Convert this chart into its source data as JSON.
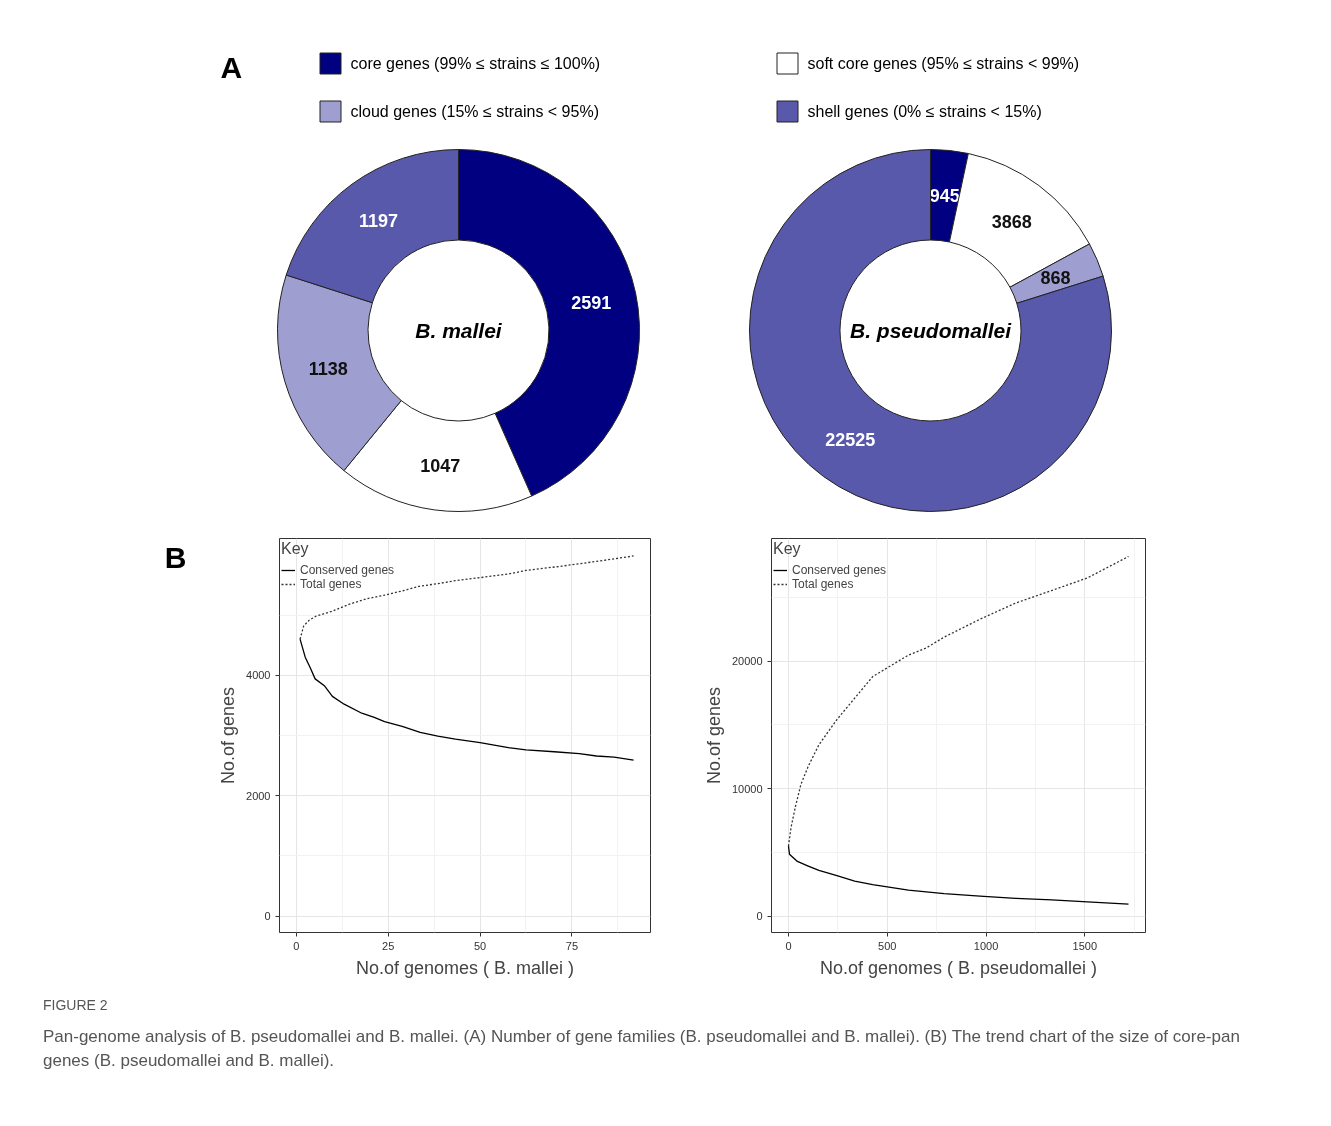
{
  "chart_data": [
    {
      "type": "donut",
      "annotations": [
        "A"
      ],
      "legend": "top",
      "data_labels": true,
      "categories": [
        "core genes (99% ≤ strains ≤ 100%)",
        "soft core genes (95% ≤ strains < 99%)",
        "cloud genes (15% ≤ strains < 95%)",
        "shell genes (0% ≤ strains < 15%)"
      ],
      "colors": [
        "#000080",
        "#ffffff",
        "#9e9fd0",
        "#5959ab"
      ],
      "series": [
        {
          "name": "B. mallei",
          "values": [
            2591,
            1047,
            1138,
            1197
          ]
        },
        {
          "name": "B. pseudomallei",
          "values": [
            945,
            3868,
            868,
            22525
          ]
        }
      ]
    },
    {
      "type": "line",
      "annotations": [
        "B"
      ],
      "xlabel": "No.of genomes ( B. mallei )",
      "ylabel": "No.of genes",
      "legend_title": "Key",
      "legend": "top left",
      "grid": true,
      "xlim": [
        -4.6,
        96.4
      ],
      "ylim": [
        -270,
        6270
      ],
      "xticks": [
        0,
        25,
        50,
        75
      ],
      "yticks": [
        0,
        2000,
        4000
      ],
      "series": [
        {
          "name": "Conserved genes",
          "color": "#000000",
          "line_style": "solid",
          "x": [
            1,
            2.4,
            3.8,
            5.1,
            7.7,
            9.8,
            13,
            17.8,
            21.2,
            24,
            28.8,
            33.7,
            38.5,
            43.3,
            50,
            57.7,
            62.5,
            70.2,
            77,
            81.7,
            86.5,
            91.8
          ],
          "values": [
            4600,
            4300,
            4120,
            3940,
            3820,
            3650,
            3520,
            3370,
            3300,
            3230,
            3150,
            3050,
            2990,
            2940,
            2880,
            2800,
            2760,
            2730,
            2700,
            2660,
            2640,
            2590
          ]
        },
        {
          "name": "Total genes",
          "color": "#333333",
          "line_style": "dotted",
          "x": [
            1,
            2,
            3.4,
            5.3,
            9.6,
            14.4,
            19.2,
            24,
            28.8,
            33.7,
            38.5,
            43.3,
            50,
            57.7,
            62.5,
            72.1,
            81.7,
            91.8
          ],
          "values": [
            4600,
            4820,
            4910,
            4980,
            5060,
            5180,
            5270,
            5330,
            5400,
            5480,
            5520,
            5570,
            5620,
            5680,
            5740,
            5810,
            5890,
            5980
          ]
        }
      ]
    },
    {
      "type": "line",
      "xlabel": "No.of genomes ( B. pseudomallei )",
      "ylabel": "No.of genes",
      "legend_title": "Key",
      "legend": "top left",
      "grid": true,
      "annotations": [
        "FIGURE 2",
        "Pan-genome analysis of B. pseudomallei and B. mallei. (A) Number of gene families (B. pseudomallei and B. mallei). (B) The trend chart of the size of core-pan genes (B. pseudomallei and B. mallei)."
      ],
      "xlim": [
        -86,
        1807
      ],
      "ylim": [
        -1270,
        29620
      ],
      "xticks": [
        0,
        500,
        1000,
        1500
      ],
      "yticks": [
        0,
        10000,
        20000
      ],
      "series": [
        {
          "name": "Conserved genes",
          "color": "#000000",
          "line_style": "solid",
          "x": [
            0,
            5,
            45,
            100,
            154,
            245,
            335,
            426,
            607,
            788,
            969,
            1150,
            1332,
            1513,
            1721
          ],
          "values": [
            5500,
            4870,
            4300,
            3940,
            3600,
            3180,
            2760,
            2480,
            2050,
            1770,
            1580,
            1410,
            1290,
            1130,
            950
          ]
        },
        {
          "name": "Total genes",
          "color": "#333333",
          "line_style": "dotted",
          "x": [
            0,
            13,
            36,
            63,
            100,
            154,
            245,
            335,
            426,
            607,
            697,
            788,
            969,
            1150,
            1332,
            1513,
            1721
          ],
          "values": [
            5500,
            6980,
            8660,
            10350,
            11760,
            13450,
            15420,
            17100,
            18790,
            20480,
            21040,
            21890,
            23290,
            24560,
            25540,
            26530,
            28210
          ]
        }
      ]
    }
  ]
}
